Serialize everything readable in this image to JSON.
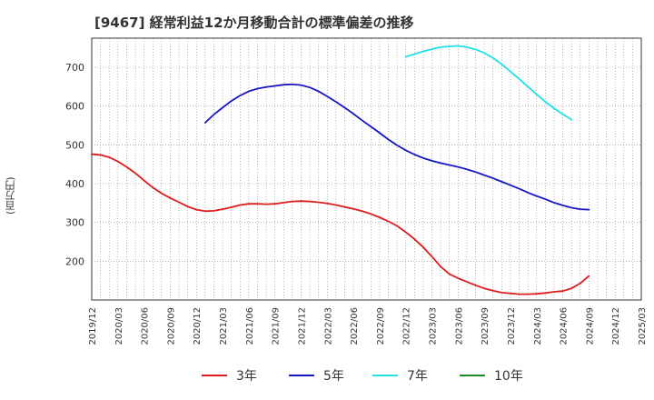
{
  "title": "[9467]  経常利益12か月移動合計の標準偏差の推移",
  "chart_data": {
    "type": "line",
    "title": "[9467]  経常利益12か月移動合計の標準偏差の推移",
    "ylabel": "(百万円)",
    "xlabel": "",
    "xlim": [
      "2019/12",
      "2025/03"
    ],
    "ylim": [
      100,
      775
    ],
    "yticks": [
      200,
      300,
      400,
      500,
      600,
      700
    ],
    "xticks": [
      "2019/12",
      "2020/03",
      "2020/06",
      "2020/09",
      "2020/12",
      "2021/03",
      "2021/06",
      "2021/09",
      "2021/12",
      "2022/03",
      "2022/06",
      "2022/09",
      "2022/12",
      "2023/03",
      "2023/06",
      "2023/09",
      "2023/12",
      "2024/03",
      "2024/06",
      "2024/09",
      "2024/12",
      "2025/03"
    ],
    "grid": true,
    "legend_position": "bottom",
    "series": [
      {
        "name": "3年",
        "color": "#dd1c1c",
        "points": [
          [
            "2019/12",
            476
          ],
          [
            "2020/01",
            474
          ],
          [
            "2020/02",
            468
          ],
          [
            "2020/03",
            457
          ],
          [
            "2020/04",
            443
          ],
          [
            "2020/05",
            427
          ],
          [
            "2020/06",
            408
          ],
          [
            "2020/07",
            390
          ],
          [
            "2020/08",
            375
          ],
          [
            "2020/09",
            363
          ],
          [
            "2020/10",
            352
          ],
          [
            "2020/11",
            341
          ],
          [
            "2020/12",
            333
          ],
          [
            "2021/01",
            329
          ],
          [
            "2021/02",
            330
          ],
          [
            "2021/03",
            334
          ],
          [
            "2021/04",
            339
          ],
          [
            "2021/05",
            345
          ],
          [
            "2021/06",
            348
          ],
          [
            "2021/07",
            348
          ],
          [
            "2021/08",
            347
          ],
          [
            "2021/09",
            348
          ],
          [
            "2021/10",
            351
          ],
          [
            "2021/11",
            354
          ],
          [
            "2021/12",
            355
          ],
          [
            "2022/01",
            354
          ],
          [
            "2022/02",
            352
          ],
          [
            "2022/03",
            349
          ],
          [
            "2022/04",
            345
          ],
          [
            "2022/05",
            340
          ],
          [
            "2022/06",
            335
          ],
          [
            "2022/07",
            329
          ],
          [
            "2022/08",
            322
          ],
          [
            "2022/09",
            313
          ],
          [
            "2022/10",
            303
          ],
          [
            "2022/11",
            291
          ],
          [
            "2022/12",
            275
          ],
          [
            "2023/01",
            257
          ],
          [
            "2023/02",
            236
          ],
          [
            "2023/03",
            212
          ],
          [
            "2023/04",
            186
          ],
          [
            "2023/05",
            167
          ],
          [
            "2023/06",
            156
          ],
          [
            "2023/07",
            147
          ],
          [
            "2023/08",
            138
          ],
          [
            "2023/09",
            130
          ],
          [
            "2023/10",
            124
          ],
          [
            "2023/11",
            119
          ],
          [
            "2023/12",
            117
          ],
          [
            "2024/01",
            115
          ],
          [
            "2024/02",
            115
          ],
          [
            "2024/03",
            116
          ],
          [
            "2024/04",
            118
          ],
          [
            "2024/05",
            121
          ],
          [
            "2024/06",
            123
          ],
          [
            "2024/07",
            130
          ],
          [
            "2024/08",
            143
          ],
          [
            "2024/09",
            162
          ]
        ]
      },
      {
        "name": "5年",
        "color": "#1616c0",
        "points": [
          [
            "2021/01",
            557
          ],
          [
            "2021/02",
            578
          ],
          [
            "2021/03",
            596
          ],
          [
            "2021/04",
            613
          ],
          [
            "2021/05",
            627
          ],
          [
            "2021/06",
            638
          ],
          [
            "2021/07",
            645
          ],
          [
            "2021/08",
            649
          ],
          [
            "2021/09",
            652
          ],
          [
            "2021/10",
            655
          ],
          [
            "2021/11",
            656
          ],
          [
            "2021/12",
            654
          ],
          [
            "2022/01",
            648
          ],
          [
            "2022/02",
            638
          ],
          [
            "2022/03",
            625
          ],
          [
            "2022/04",
            611
          ],
          [
            "2022/05",
            596
          ],
          [
            "2022/06",
            580
          ],
          [
            "2022/07",
            563
          ],
          [
            "2022/08",
            547
          ],
          [
            "2022/09",
            531
          ],
          [
            "2022/10",
            514
          ],
          [
            "2022/11",
            499
          ],
          [
            "2022/12",
            486
          ],
          [
            "2023/01",
            475
          ],
          [
            "2023/02",
            466
          ],
          [
            "2023/03",
            459
          ],
          [
            "2023/04",
            453
          ],
          [
            "2023/05",
            448
          ],
          [
            "2023/06",
            443
          ],
          [
            "2023/07",
            437
          ],
          [
            "2023/08",
            430
          ],
          [
            "2023/09",
            422
          ],
          [
            "2023/10",
            414
          ],
          [
            "2023/11",
            405
          ],
          [
            "2023/12",
            396
          ],
          [
            "2024/01",
            387
          ],
          [
            "2024/02",
            377
          ],
          [
            "2024/03",
            368
          ],
          [
            "2024/04",
            360
          ],
          [
            "2024/05",
            351
          ],
          [
            "2024/06",
            344
          ],
          [
            "2024/07",
            338
          ],
          [
            "2024/08",
            334
          ],
          [
            "2024/09",
            333
          ]
        ]
      },
      {
        "name": "7年",
        "color": "#22e0e8",
        "points": [
          [
            "2022/12",
            727
          ],
          [
            "2023/01",
            734
          ],
          [
            "2023/02",
            741
          ],
          [
            "2023/03",
            747
          ],
          [
            "2023/04",
            752
          ],
          [
            "2023/05",
            754
          ],
          [
            "2023/06",
            755
          ],
          [
            "2023/07",
            752
          ],
          [
            "2023/08",
            746
          ],
          [
            "2023/09",
            737
          ],
          [
            "2023/10",
            724
          ],
          [
            "2023/11",
            708
          ],
          [
            "2023/12",
            689
          ],
          [
            "2024/01",
            670
          ],
          [
            "2024/02",
            650
          ],
          [
            "2024/03",
            630
          ],
          [
            "2024/04",
            611
          ],
          [
            "2024/05",
            594
          ],
          [
            "2024/06",
            579
          ],
          [
            "2024/07",
            565
          ]
        ]
      },
      {
        "name": "10年",
        "color": "#228822",
        "points": []
      }
    ]
  }
}
